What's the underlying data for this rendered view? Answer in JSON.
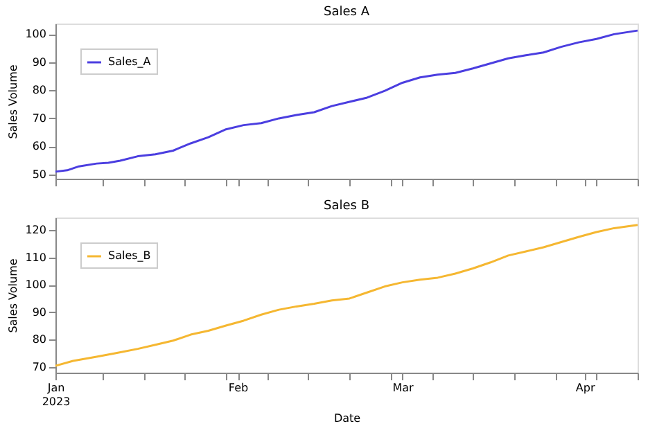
{
  "chart_data": [
    {
      "type": "line",
      "title": "Sales A",
      "ylabel": "Sales Volume",
      "legend": "top left",
      "grid": false,
      "line_style": "solid",
      "tick_labels": "y",
      "x": [
        "2023-01-01",
        "2023-01-03",
        "2023-01-05",
        "2023-01-08",
        "2023-01-10",
        "2023-01-12",
        "2023-01-15",
        "2023-01-18",
        "2023-01-21",
        "2023-01-24",
        "2023-01-27",
        "2023-01-30",
        "2023-02-02",
        "2023-02-05",
        "2023-02-08",
        "2023-02-11",
        "2023-02-14",
        "2023-02-17",
        "2023-02-20",
        "2023-02-23",
        "2023-02-26",
        "2023-03-01",
        "2023-03-04",
        "2023-03-07",
        "2023-03-10",
        "2023-03-13",
        "2023-03-16",
        "2023-03-19",
        "2023-03-22",
        "2023-03-25",
        "2023-03-28",
        "2023-03-31",
        "2023-04-03",
        "2023-04-06",
        "2023-04-10"
      ],
      "series": [
        {
          "name": "Sales_A",
          "color": "#4b3ee0",
          "values": [
            51.0,
            51.5,
            52.9,
            53.9,
            54.2,
            54.9,
            56.5,
            57.2,
            58.5,
            61.1,
            63.3,
            66.1,
            67.6,
            68.3,
            70.0,
            71.2,
            72.2,
            74.4,
            75.9,
            77.4,
            79.8,
            82.7,
            84.6,
            85.6,
            86.2,
            87.8,
            89.6,
            91.4,
            92.5,
            93.5,
            95.5,
            97.1,
            98.3,
            100.0,
            101.3
          ]
        }
      ],
      "xlim": [
        "2023-01-01",
        "2023-04-10"
      ],
      "ylim": [
        48.5,
        103.8
      ],
      "yticks": [
        50,
        60,
        70,
        80,
        90,
        100
      ],
      "xticks": [
        {
          "value": "2023-01-01",
          "label": null
        },
        {
          "value": "2023-01-09",
          "label": null
        },
        {
          "value": "2023-01-16",
          "label": null
        },
        {
          "value": "2023-01-23",
          "label": null
        },
        {
          "value": "2023-01-30",
          "label": null
        },
        {
          "value": "2023-02-01",
          "label": null
        },
        {
          "value": "2023-02-06",
          "label": null
        },
        {
          "value": "2023-02-13",
          "label": null
        },
        {
          "value": "2023-02-20",
          "label": null
        },
        {
          "value": "2023-02-27",
          "label": null
        },
        {
          "value": "2023-03-01",
          "label": null
        },
        {
          "value": "2023-03-06",
          "label": null
        },
        {
          "value": "2023-03-13",
          "label": null
        },
        {
          "value": "2023-03-20",
          "label": null
        },
        {
          "value": "2023-03-27",
          "label": null
        },
        {
          "value": "2023-04-01",
          "label": null
        },
        {
          "value": "2023-04-03",
          "label": null
        },
        {
          "value": "2023-04-10",
          "label": null
        }
      ]
    },
    {
      "type": "line",
      "title": "Sales B",
      "xlabel": "Date",
      "ylabel": "Sales Volume",
      "legend": "top left",
      "grid": false,
      "line_style": "solid",
      "x": [
        "2023-01-01",
        "2023-01-04",
        "2023-01-08",
        "2023-01-11",
        "2023-01-15",
        "2023-01-18",
        "2023-01-21",
        "2023-01-24",
        "2023-01-27",
        "2023-01-30",
        "2023-02-02",
        "2023-02-05",
        "2023-02-08",
        "2023-02-11",
        "2023-02-14",
        "2023-02-17",
        "2023-02-20",
        "2023-02-23",
        "2023-02-26",
        "2023-03-01",
        "2023-03-04",
        "2023-03-07",
        "2023-03-10",
        "2023-03-13",
        "2023-03-16",
        "2023-03-19",
        "2023-03-22",
        "2023-03-25",
        "2023-03-28",
        "2023-03-31",
        "2023-04-03",
        "2023-04-06",
        "2023-04-10"
      ],
      "series": [
        {
          "name": "Sales_B",
          "color": "#f5b731",
          "values": [
            70.4,
            72.2,
            73.7,
            74.9,
            76.6,
            78.1,
            79.6,
            81.8,
            83.2,
            85.1,
            86.9,
            89.1,
            90.9,
            92.1,
            93.1,
            94.3,
            95.0,
            97.2,
            99.4,
            100.9,
            101.9,
            102.6,
            104.1,
            106.0,
            108.2,
            110.7,
            112.2,
            113.7,
            115.6,
            117.5,
            119.3,
            120.7,
            121.9
          ]
        }
      ],
      "xlim": [
        "2023-01-01",
        "2023-04-10"
      ],
      "ylim": [
        67.9,
        124.6
      ],
      "yticks": [
        70,
        80,
        90,
        100,
        110,
        120
      ],
      "xticks": [
        {
          "value": "2023-01-01",
          "label": "Jan\n2023"
        },
        {
          "value": "2023-01-09",
          "label": null
        },
        {
          "value": "2023-01-16",
          "label": null
        },
        {
          "value": "2023-01-23",
          "label": null
        },
        {
          "value": "2023-01-30",
          "label": null
        },
        {
          "value": "2023-02-01",
          "label": "Feb"
        },
        {
          "value": "2023-02-06",
          "label": null
        },
        {
          "value": "2023-02-13",
          "label": null
        },
        {
          "value": "2023-02-20",
          "label": null
        },
        {
          "value": "2023-02-27",
          "label": null
        },
        {
          "value": "2023-03-01",
          "label": "Mar"
        },
        {
          "value": "2023-03-06",
          "label": null
        },
        {
          "value": "2023-03-13",
          "label": null
        },
        {
          "value": "2023-03-20",
          "label": null
        },
        {
          "value": "2023-03-27",
          "label": null
        },
        {
          "value": "2023-04-01",
          "label": "Apr"
        },
        {
          "value": "2023-04-03",
          "label": null
        },
        {
          "value": "2023-04-10",
          "label": null
        }
      ]
    }
  ]
}
